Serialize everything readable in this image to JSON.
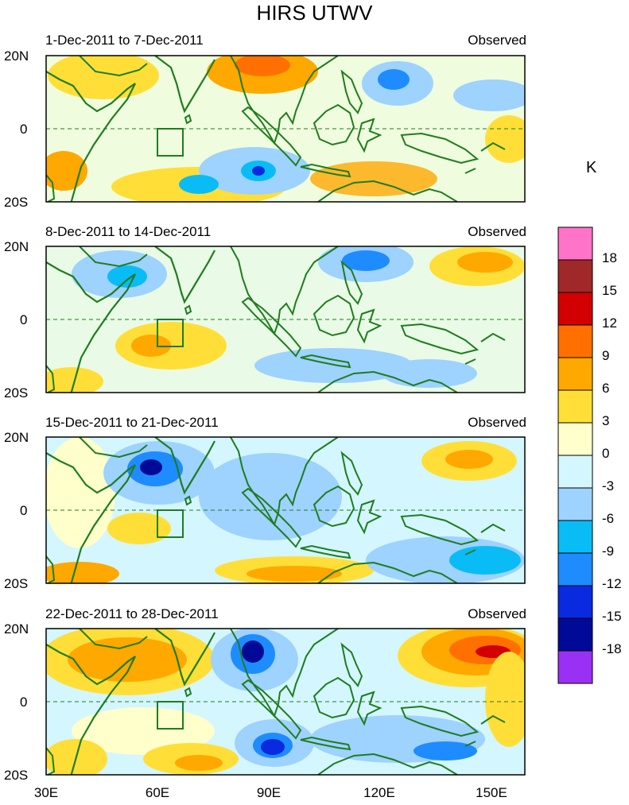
{
  "title": "HIRS UTWV",
  "unit": "K",
  "panels": [
    {
      "date_range": "1-Dec-2011 to 7-Dec-2011",
      "source": "Observed"
    },
    {
      "date_range": "8-Dec-2011 to 14-Dec-2011",
      "source": "Observed"
    },
    {
      "date_range": "15-Dec-2011 to 21-Dec-2011",
      "source": "Observed"
    },
    {
      "date_range": "22-Dec-2011 to 28-Dec-2011",
      "source": "Observed"
    }
  ],
  "lat_labels": [
    "20N",
    "0",
    "20S"
  ],
  "lon_labels": [
    "30E",
    "60E",
    "90E",
    "120E",
    "150E"
  ],
  "colorbar": {
    "labels": [
      "18",
      "15",
      "12",
      "9",
      "6",
      "3",
      "0",
      "-3",
      "-6",
      "-9",
      "-12",
      "-15",
      "-18"
    ],
    "colors": [
      "#ff73c8",
      "#a02828",
      "#d20000",
      "#ff7000",
      "#ffa800",
      "#ffdf37",
      "#ffffcc",
      "#d4f6ff",
      "#9ed2ff",
      "#0abcf5",
      "#1e8cff",
      "#0a2ae0",
      "#000a96",
      "#9b30f5"
    ]
  }
}
